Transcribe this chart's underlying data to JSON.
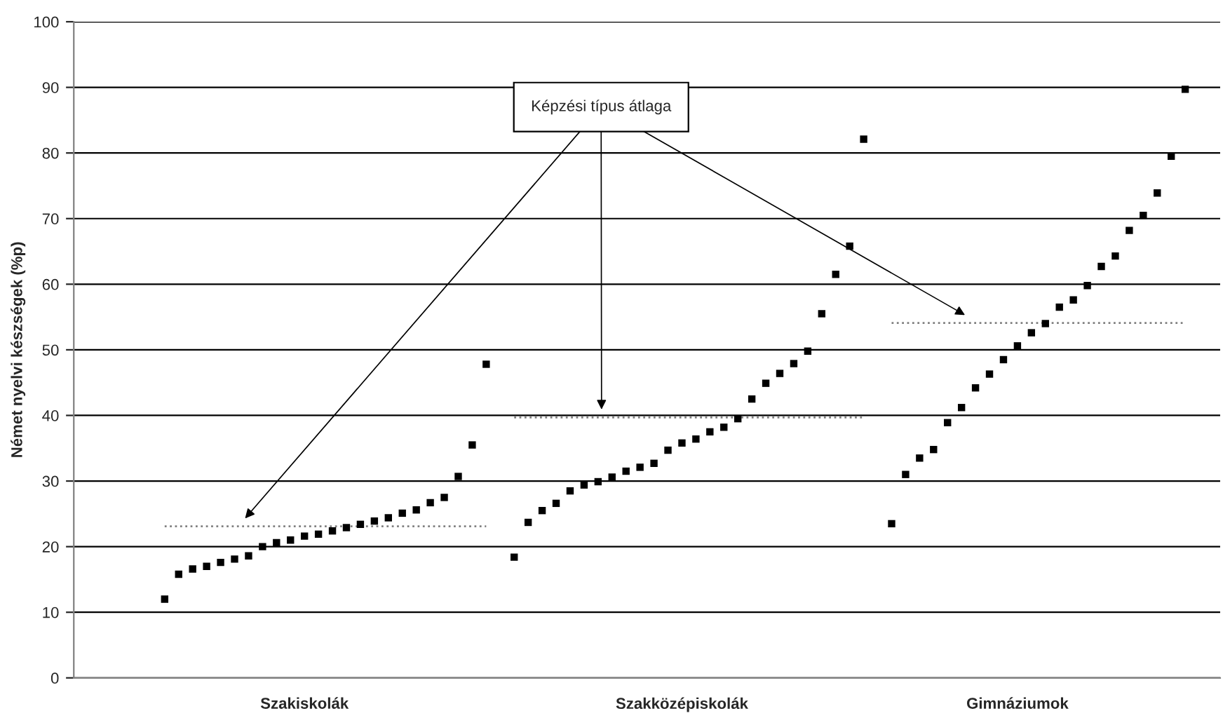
{
  "chart_data": {
    "type": "scatter",
    "ylabel": "Német nyelvi készségek (%p)",
    "ylim": [
      0,
      100
    ],
    "yticks": [
      0,
      10,
      20,
      30,
      40,
      50,
      60,
      70,
      80,
      90,
      100
    ],
    "grid": "y",
    "legend": false,
    "marker": "square",
    "annotations": [
      "Képzési típus átlaga"
    ],
    "categories": [
      null,
      null,
      null,
      null,
      null,
      null,
      null,
      null,
      null,
      null,
      null,
      null,
      null,
      null,
      null,
      null,
      "Szakiskolák",
      null,
      null,
      null,
      null,
      null,
      null,
      null,
      null,
      null,
      null,
      null,
      null,
      null,
      null,
      null,
      null,
      null,
      null,
      null,
      null,
      null,
      null,
      null,
      null,
      null,
      null,
      "Szakközépiskolák",
      null,
      null,
      null,
      null,
      null,
      null,
      null,
      null,
      null,
      null,
      null,
      null,
      null,
      null,
      null,
      null,
      null,
      null,
      null,
      null,
      null,
      null,
      null,
      "Gimnáziumok",
      null,
      null,
      null,
      null,
      null,
      null,
      null,
      null,
      null,
      null,
      null,
      null,
      null,
      null
    ],
    "series": [
      {
        "color": "#000000",
        "values": [
          null,
          null,
          null,
          null,
          null,
          null,
          12,
          15.8,
          16.6,
          17.0,
          17.6,
          18.1,
          18.6,
          20.0,
          20.6,
          21.0,
          21.6,
          21.9,
          22.4,
          22.9,
          23.4,
          23.9,
          24.4,
          25.1,
          25.6,
          26.7,
          27.5,
          30.7,
          35.5,
          47.8,
          null,
          18.4,
          23.7,
          25.5,
          26.6,
          28.5,
          29.4,
          29.9,
          30.6,
          31.5,
          32.1,
          32.7,
          34.7,
          35.8,
          36.4,
          37.5,
          38.2,
          39.5,
          42.5,
          44.9,
          46.4,
          47.9,
          49.8,
          55.5,
          61.5,
          65.8,
          82.1,
          null,
          23.5,
          31.0,
          33.5,
          34.8,
          38.9,
          41.2,
          44.2,
          46.3,
          48.5,
          50.6,
          52.6,
          54.0,
          56.5,
          57.6,
          59.8,
          62.7,
          64.3,
          68.2,
          70.5,
          73.9,
          79.5,
          89.7,
          null,
          null
        ]
      },
      {
        "type": "line",
        "marker": "none",
        "line_style": "dotted",
        "color": "#808080",
        "values": [
          null,
          null,
          null,
          null,
          null,
          null,
          23.1,
          23.1,
          23.1,
          23.1,
          23.1,
          23.1,
          23.1,
          23.1,
          23.1,
          23.1,
          23.1,
          23.1,
          23.1,
          23.1,
          23.1,
          23.1,
          23.1,
          23.1,
          23.1,
          23.1,
          23.1,
          23.1,
          23.1,
          23.1,
          null,
          null,
          null,
          null,
          null,
          null,
          null,
          null,
          null,
          null,
          null,
          null,
          null,
          null,
          null,
          null,
          null,
          null,
          null,
          null,
          null,
          null,
          null,
          null,
          null,
          null,
          null,
          null,
          null,
          null,
          null,
          null,
          null,
          null,
          null,
          null,
          null,
          null,
          null,
          null,
          null,
          null,
          null,
          null,
          null,
          null,
          null,
          null,
          null,
          null,
          null,
          null
        ]
      },
      {
        "type": "line",
        "marker": "none",
        "line_style": "dotted",
        "color": "#808080",
        "values": [
          null,
          null,
          null,
          null,
          null,
          null,
          null,
          null,
          null,
          null,
          null,
          null,
          null,
          null,
          null,
          null,
          null,
          null,
          null,
          null,
          null,
          null,
          null,
          null,
          null,
          null,
          null,
          null,
          null,
          null,
          null,
          39.7,
          39.7,
          39.7,
          39.7,
          39.7,
          39.7,
          39.7,
          39.7,
          39.7,
          39.7,
          39.7,
          39.7,
          39.7,
          39.7,
          39.7,
          39.7,
          39.7,
          39.7,
          39.7,
          39.7,
          39.7,
          39.7,
          39.7,
          39.7,
          39.7,
          39.7,
          null,
          null,
          null,
          null,
          null,
          null,
          null,
          null,
          null,
          null,
          null,
          null,
          null,
          null,
          null,
          null,
          null,
          null,
          null,
          null,
          null,
          null,
          null,
          null,
          null
        ]
      },
      {
        "type": "line",
        "marker": "none",
        "line_style": "dotted",
        "color": "#808080",
        "values": [
          null,
          null,
          null,
          null,
          null,
          null,
          null,
          null,
          null,
          null,
          null,
          null,
          null,
          null,
          null,
          null,
          null,
          null,
          null,
          null,
          null,
          null,
          null,
          null,
          null,
          null,
          null,
          null,
          null,
          null,
          null,
          null,
          null,
          null,
          null,
          null,
          null,
          null,
          null,
          null,
          null,
          null,
          null,
          null,
          null,
          null,
          null,
          null,
          null,
          null,
          null,
          null,
          null,
          null,
          null,
          null,
          null,
          null,
          54.1,
          54.1,
          54.1,
          54.1,
          54.1,
          54.1,
          54.1,
          54.1,
          54.1,
          54.1,
          54.1,
          54.1,
          54.1,
          54.1,
          54.1,
          54.1,
          54.1,
          54.1,
          54.1,
          54.1,
          54.1,
          54.1,
          null,
          null
        ]
      }
    ]
  }
}
